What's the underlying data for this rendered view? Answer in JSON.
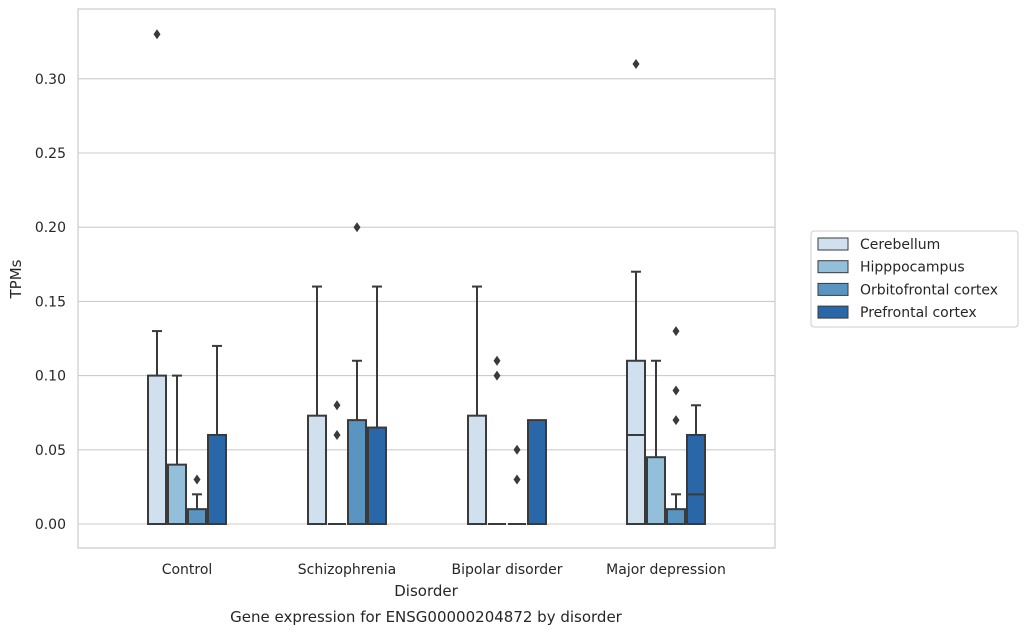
{
  "chart_data": {
    "type": "box",
    "title": "Gene expression for ENSG00000204872 by disorder",
    "xlabel": "Disorder",
    "ylabel": "TPMs",
    "ylim": [
      -0.016,
      0.346
    ],
    "yticks": [
      "0.00",
      "0.05",
      "0.10",
      "0.15",
      "0.20",
      "0.25",
      "0.30"
    ],
    "ytick_values": [
      0.0,
      0.05,
      0.1,
      0.15,
      0.2,
      0.25,
      0.3
    ],
    "categories": [
      "Control",
      "Schizophrenia",
      "Bipolar disorder",
      "Major depression"
    ],
    "grid": true,
    "legend_position": "right",
    "series": [
      {
        "name": "Cerebellum",
        "color": "#d1e0ef",
        "boxes": [
          {
            "q1": 0.0,
            "median": 0.0,
            "q3": 0.1,
            "whisker_low": 0.0,
            "whisker_high": 0.13,
            "outliers": [
              0.33
            ]
          },
          {
            "q1": 0.0,
            "median": 0.0,
            "q3": 0.073,
            "whisker_low": 0.0,
            "whisker_high": 0.16,
            "outliers": []
          },
          {
            "q1": 0.0,
            "median": 0.0,
            "q3": 0.073,
            "whisker_low": 0.0,
            "whisker_high": 0.16,
            "outliers": []
          },
          {
            "q1": 0.0,
            "median": 0.06,
            "q3": 0.11,
            "whisker_low": 0.0,
            "whisker_high": 0.17,
            "outliers": [
              0.31
            ]
          }
        ]
      },
      {
        "name": "Hipppocampus",
        "color": "#94bfdb",
        "boxes": [
          {
            "q1": 0.0,
            "median": 0.0,
            "q3": 0.04,
            "whisker_low": 0.0,
            "whisker_high": 0.1,
            "outliers": []
          },
          {
            "q1": 0.0,
            "median": 0.0,
            "q3": 0.0,
            "whisker_low": 0.0,
            "whisker_high": 0.0,
            "outliers": [
              0.06,
              0.08
            ]
          },
          {
            "q1": 0.0,
            "median": 0.0,
            "q3": 0.0,
            "whisker_low": 0.0,
            "whisker_high": 0.0,
            "outliers": [
              0.1,
              0.11
            ]
          },
          {
            "q1": 0.0,
            "median": 0.0,
            "q3": 0.045,
            "whisker_low": 0.0,
            "whisker_high": 0.11,
            "outliers": []
          }
        ]
      },
      {
        "name": "Orbitofrontal cortex",
        "color": "#5a95c2",
        "boxes": [
          {
            "q1": 0.0,
            "median": 0.0,
            "q3": 0.01,
            "whisker_low": 0.0,
            "whisker_high": 0.02,
            "outliers": [
              0.03
            ]
          },
          {
            "q1": 0.0,
            "median": 0.0,
            "q3": 0.07,
            "whisker_low": 0.0,
            "whisker_high": 0.11,
            "outliers": [
              0.2
            ]
          },
          {
            "q1": 0.0,
            "median": 0.0,
            "q3": 0.0,
            "whisker_low": 0.0,
            "whisker_high": 0.0,
            "outliers": [
              0.03,
              0.05
            ]
          },
          {
            "q1": 0.0,
            "median": 0.0,
            "q3": 0.01,
            "whisker_low": 0.0,
            "whisker_high": 0.02,
            "outliers": [
              0.07,
              0.09,
              0.13
            ]
          }
        ]
      },
      {
        "name": "Prefrontal cortex",
        "color": "#2a67a8",
        "boxes": [
          {
            "q1": 0.0,
            "median": 0.0,
            "q3": 0.06,
            "whisker_low": 0.0,
            "whisker_high": 0.12,
            "outliers": []
          },
          {
            "q1": 0.0,
            "median": 0.0,
            "q3": 0.065,
            "whisker_low": 0.0,
            "whisker_high": 0.16,
            "outliers": []
          },
          {
            "q1": 0.0,
            "median": 0.0,
            "q3": 0.07,
            "whisker_low": 0.0,
            "whisker_high": 0.07,
            "outliers": []
          },
          {
            "q1": 0.0,
            "median": 0.02,
            "q3": 0.06,
            "whisker_low": 0.0,
            "whisker_high": 0.08,
            "outliers": []
          }
        ]
      }
    ]
  }
}
